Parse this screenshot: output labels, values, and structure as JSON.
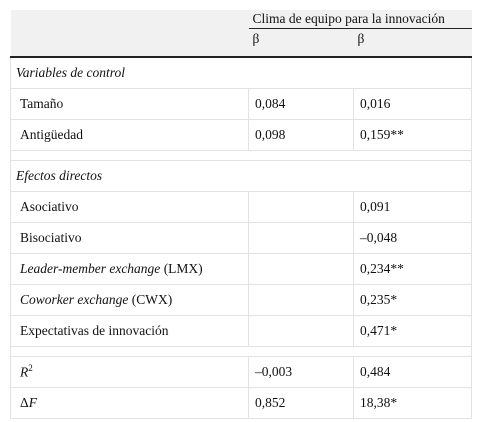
{
  "table": {
    "header": {
      "group": "Clima de equipo para la innovación",
      "columns": [
        "β",
        "β"
      ]
    },
    "rows": [
      {
        "kind": "section",
        "label": [
          {
            "text": "Variables de control",
            "style": "italic"
          }
        ]
      },
      {
        "kind": "data",
        "label": [
          {
            "text": "Tamaño"
          }
        ],
        "values": [
          "0,084",
          "0,016"
        ]
      },
      {
        "kind": "data",
        "label": [
          {
            "text": "Antigüedad"
          }
        ],
        "values": [
          "0,098",
          "0,159**"
        ]
      },
      {
        "kind": "spacer"
      },
      {
        "kind": "section",
        "label": [
          {
            "text": "Efectos directos",
            "style": "italic"
          }
        ]
      },
      {
        "kind": "data",
        "label": [
          {
            "text": "Asociativo"
          }
        ],
        "values": [
          null,
          "0,091"
        ]
      },
      {
        "kind": "data",
        "label": [
          {
            "text": "Bisociativo"
          }
        ],
        "values": [
          null,
          "–0,048"
        ]
      },
      {
        "kind": "data",
        "label": [
          {
            "text": "Leader-member exchange",
            "style": "italic"
          },
          {
            "text": " (LMX)"
          }
        ],
        "values": [
          null,
          "0,234**"
        ]
      },
      {
        "kind": "data",
        "label": [
          {
            "text": "Coworker exchange",
            "style": "italic"
          },
          {
            "text": " (CWX)"
          }
        ],
        "values": [
          null,
          "0,235*"
        ]
      },
      {
        "kind": "data",
        "label": [
          {
            "text": "Expectativas de innovación"
          }
        ],
        "values": [
          null,
          "0,471*"
        ]
      },
      {
        "kind": "spacer"
      },
      {
        "kind": "stat",
        "label": [
          {
            "text": "R",
            "style": "italic"
          },
          {
            "text": "2",
            "style": "sup"
          }
        ],
        "values": [
          "–0,003",
          "0,484"
        ]
      },
      {
        "kind": "stat",
        "label": [
          {
            "text": "Δ"
          },
          {
            "text": "F",
            "style": "italic"
          }
        ],
        "values": [
          "0,852",
          "18,38*"
        ]
      }
    ]
  }
}
